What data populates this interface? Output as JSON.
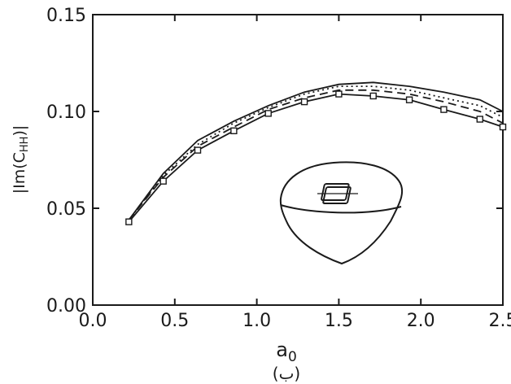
{
  "chart_data": {
    "type": "line",
    "xlabel": "a",
    "xlabel_subscript": "0",
    "ylabel": "|Im(C",
    "ylabel_subscript": "HH",
    "ylabel_suffix": ")|",
    "caption": "(ب)",
    "xlim": [
      0.0,
      2.5
    ],
    "ylim": [
      0.0,
      0.15
    ],
    "xticks": [
      0.0,
      0.5,
      1.0,
      1.5,
      2.0,
      2.5
    ],
    "xtick_labels": [
      "0.0",
      "0.5",
      "1.0",
      "1.5",
      "2.0",
      "2.5"
    ],
    "yticks": [
      0.0,
      0.05,
      0.1,
      0.15
    ],
    "ytick_labels": [
      "0.00",
      "0.05",
      "0.10",
      "0.15"
    ],
    "grid": false,
    "legend": "none",
    "series": [
      {
        "style": "solid",
        "x": [
          0.22,
          0.43,
          0.64,
          0.86,
          1.07,
          1.29,
          1.5,
          1.71,
          1.93,
          2.14,
          2.36,
          2.5
        ],
        "values": [
          0.044,
          0.068,
          0.085,
          0.095,
          0.103,
          0.11,
          0.114,
          0.115,
          0.113,
          0.11,
          0.106,
          0.1
        ]
      },
      {
        "style": "dotted",
        "x": [
          0.22,
          0.43,
          0.64,
          0.86,
          1.07,
          1.29,
          1.5,
          1.71,
          1.93,
          2.14,
          2.36,
          2.5
        ],
        "values": [
          0.044,
          0.067,
          0.083,
          0.094,
          0.102,
          0.109,
          0.113,
          0.113,
          0.111,
          0.107,
          0.103,
          0.097
        ]
      },
      {
        "style": "dashed",
        "x": [
          0.22,
          0.43,
          0.64,
          0.86,
          1.07,
          1.29,
          1.5,
          1.71,
          1.93,
          2.14,
          2.36,
          2.5
        ],
        "values": [
          0.044,
          0.066,
          0.082,
          0.092,
          0.101,
          0.107,
          0.111,
          0.111,
          0.109,
          0.105,
          0.1,
          0.094
        ]
      },
      {
        "style": "solid-square-markers",
        "x": [
          0.22,
          0.43,
          0.64,
          0.86,
          1.07,
          1.29,
          1.5,
          1.71,
          1.93,
          2.14,
          2.36,
          2.5
        ],
        "values": [
          0.043,
          0.064,
          0.08,
          0.09,
          0.099,
          0.105,
          0.109,
          0.108,
          0.106,
          0.101,
          0.096,
          0.092
        ]
      }
    ]
  }
}
